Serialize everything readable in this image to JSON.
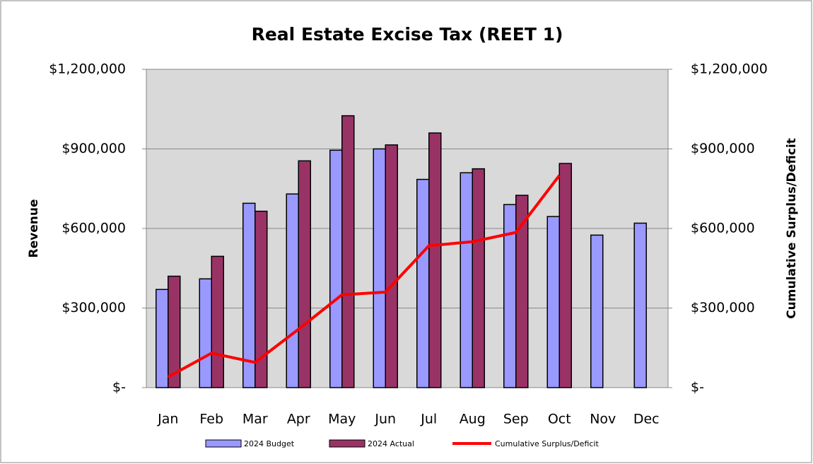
{
  "chart_data": {
    "type": "bar",
    "title": "Real Estate Excise Tax (REET 1)",
    "y_label": "Revenue",
    "y2_label": "Cumulative Surplus/Deficit",
    "categories": [
      "Jan",
      "Feb",
      "Mar",
      "Apr",
      "May",
      "Jun",
      "Jul",
      "Aug",
      "Sep",
      "Oct",
      "Nov",
      "Dec"
    ],
    "series": [
      {
        "name": "2024 Budget",
        "type": "bar",
        "color": "#9999ff",
        "values": [
          370000,
          410000,
          695000,
          730000,
          895000,
          900000,
          785000,
          810000,
          690000,
          645000,
          575000,
          620000
        ]
      },
      {
        "name": "2024 Actual",
        "type": "bar",
        "color": "#993366",
        "values": [
          420000,
          495000,
          665000,
          855000,
          1025000,
          915000,
          960000,
          825000,
          725000,
          845000,
          null,
          null
        ]
      },
      {
        "name": "Cumulative Surplus/Deficit",
        "type": "line",
        "axis": "y2",
        "color": "#ff0000",
        "values": [
          40000,
          130000,
          95000,
          220000,
          350000,
          360000,
          535000,
          550000,
          585000,
          800000,
          null,
          null
        ]
      }
    ],
    "ylim": [
      0,
      1200000
    ],
    "yticks": [
      {
        "value": 0,
        "label": "$-"
      },
      {
        "value": 300000,
        "label": "$300,000"
      },
      {
        "value": 600000,
        "label": "$600,000"
      },
      {
        "value": 900000,
        "label": "$900,000"
      },
      {
        "value": 1200000,
        "label": "$1,200,000"
      }
    ],
    "y2lim": [
      0,
      1200000
    ],
    "y2ticks": [
      {
        "value": 0,
        "label": "$-"
      },
      {
        "value": 300000,
        "label": "$300,000"
      },
      {
        "value": 600000,
        "label": "$600,000"
      },
      {
        "value": 900000,
        "label": "$900,000"
      },
      {
        "value": 1200000,
        "label": "$1,200,000"
      }
    ],
    "grid": true,
    "legend": "bottom"
  }
}
